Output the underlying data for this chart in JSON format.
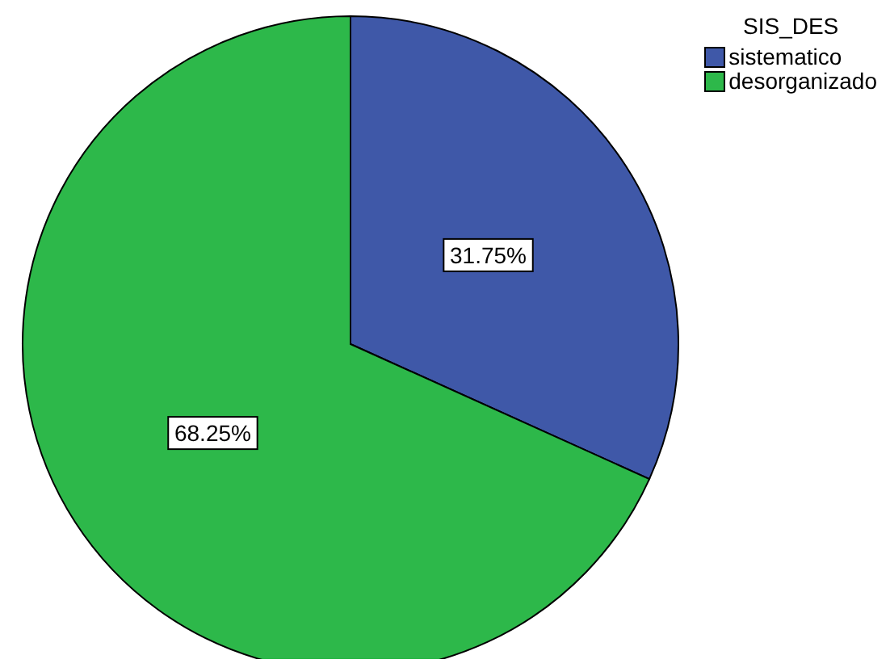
{
  "chart_data": {
    "type": "pie",
    "legend_title": "SIS_DES",
    "legend": "top right",
    "categories": [
      "sistematico",
      "desorganizado"
    ],
    "values": [
      31.75,
      68.25
    ],
    "colors": [
      "#3f58a8",
      "#2db84a"
    ],
    "value_labels": [
      "31.75%",
      "68.25%"
    ]
  }
}
